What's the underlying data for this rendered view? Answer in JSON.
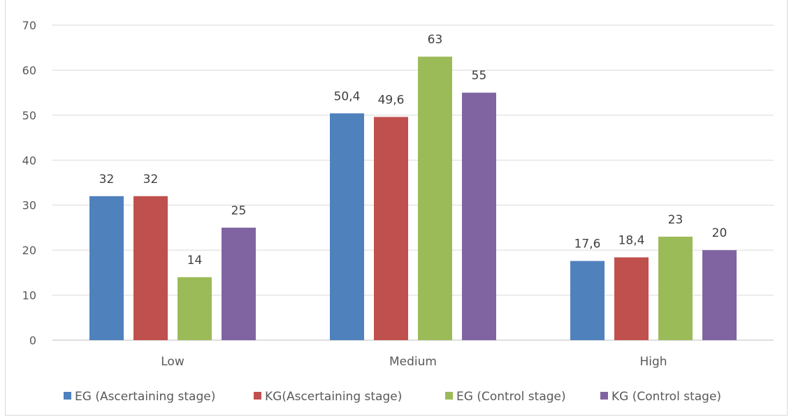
{
  "chart_data": {
    "type": "bar",
    "title": "",
    "xlabel": "",
    "ylabel": "",
    "categories": [
      "Low",
      "Medium",
      "High"
    ],
    "series": [
      {
        "name": "EG (Ascertaining stage)",
        "values": [
          32,
          50.4,
          17.6
        ],
        "labels": [
          "32",
          "50,4",
          "17,6"
        ],
        "color": "#4f81bd"
      },
      {
        "name": "KG(Ascertaining stage)",
        "values": [
          32,
          49.6,
          18.4
        ],
        "labels": [
          "32",
          "49,6",
          "18,4"
        ],
        "color": "#c0504d"
      },
      {
        "name": "EG (Control stage)",
        "values": [
          14,
          63,
          23
        ],
        "labels": [
          "14",
          "63",
          "23"
        ],
        "color": "#9bbb59"
      },
      {
        "name": "KG (Control stage)",
        "values": [
          25,
          55,
          20
        ],
        "labels": [
          "25",
          "55",
          "20"
        ],
        "color": "#8064a2"
      }
    ],
    "ylim": [
      0,
      70
    ],
    "yticks": [
      0,
      10,
      20,
      30,
      40,
      50,
      60,
      70
    ],
    "grid": true,
    "legend_position": "bottom"
  }
}
